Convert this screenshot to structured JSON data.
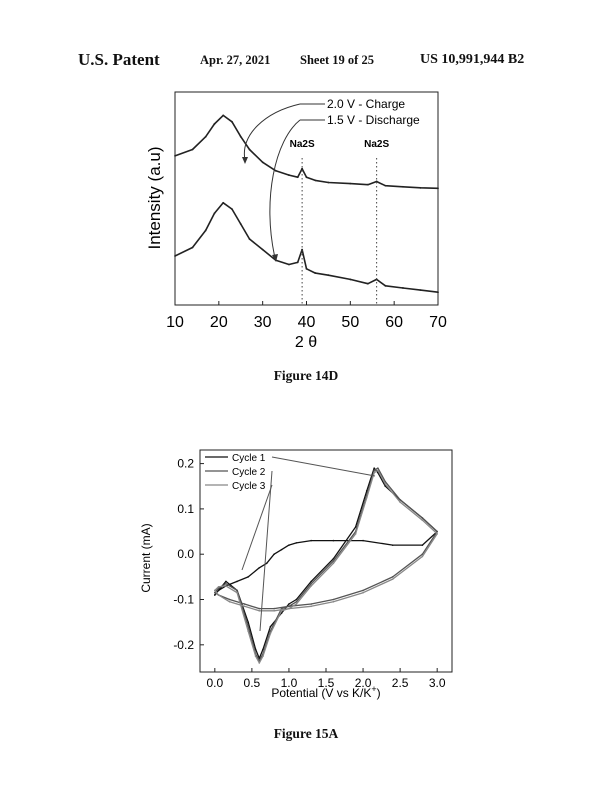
{
  "header": {
    "left": "U.S. Patent",
    "date": "Apr. 27, 2021",
    "sheet": "Sheet 19 of 25",
    "number": "US 10,991,944 B2"
  },
  "figures": {
    "fig14d_caption": "Figure 14D",
    "fig15a_caption": "Figure 15A"
  },
  "chart_data": [
    {
      "type": "line",
      "title": "",
      "xlabel": "2 θ",
      "ylabel": "Intensity (a.u)",
      "xlim": [
        10,
        70
      ],
      "xticks": [
        "10",
        "20",
        "30",
        "40",
        "50",
        "60",
        "70"
      ],
      "legend_labels": [
        "2.0 V - Charge",
        "1.5 V - Discharge"
      ],
      "annotations": [
        "Na2S",
        "Na2S"
      ],
      "annotation_x": [
        39,
        56
      ],
      "series": [
        {
          "name": "2.0 V - Charge",
          "x": [
            10,
            14,
            17,
            19,
            21,
            23,
            25,
            27,
            30,
            33,
            36,
            38,
            39,
            40,
            42,
            45,
            50,
            54,
            56,
            58,
            62,
            66,
            70
          ],
          "y": [
            0.7,
            0.73,
            0.79,
            0.85,
            0.89,
            0.86,
            0.79,
            0.73,
            0.67,
            0.63,
            0.61,
            0.6,
            0.64,
            0.6,
            0.585,
            0.575,
            0.57,
            0.565,
            0.58,
            0.56,
            0.555,
            0.55,
            0.548
          ]
        },
        {
          "name": "1.5 V - Discharge",
          "x": [
            10,
            14,
            17,
            19,
            21,
            23,
            25,
            27,
            30,
            33,
            36,
            38,
            39,
            40,
            42,
            45,
            50,
            54,
            56,
            58,
            62,
            66,
            70
          ],
          "y": [
            0.23,
            0.27,
            0.35,
            0.43,
            0.48,
            0.45,
            0.38,
            0.31,
            0.26,
            0.21,
            0.19,
            0.2,
            0.26,
            0.17,
            0.15,
            0.14,
            0.12,
            0.1,
            0.12,
            0.09,
            0.08,
            0.07,
            0.06
          ]
        }
      ]
    },
    {
      "type": "line",
      "title": "",
      "xlabel": "Potential (V vs K/K+)",
      "ylabel": "Current (mA)",
      "xlim": [
        -0.2,
        3.2
      ],
      "ylim": [
        -0.26,
        0.23
      ],
      "xticks": [
        "0.0",
        "0.5",
        "1.0",
        "1.5",
        "2.0",
        "2.5",
        "3.0"
      ],
      "yticks": [
        "-0.2",
        "-0.1",
        "0.0",
        "0.1",
        "0.2"
      ],
      "series": [
        {
          "name": "Cycle 1",
          "x": [
            0.0,
            0.05,
            0.15,
            0.3,
            0.45,
            0.55,
            0.6,
            0.65,
            0.75,
            0.9,
            1.0,
            1.1,
            1.3,
            1.6,
            1.9,
            2.05,
            2.15,
            2.2,
            2.3,
            2.5,
            2.8,
            3.0,
            2.8,
            2.4,
            2.0,
            1.6,
            1.3,
            1.1,
            1.0,
            0.9,
            0.8,
            0.7,
            0.6,
            0.45,
            0.3,
            0.15,
            0.05,
            0.0
          ],
          "y": [
            -0.09,
            -0.08,
            -0.06,
            -0.08,
            -0.15,
            -0.21,
            -0.23,
            -0.21,
            -0.16,
            -0.13,
            -0.11,
            -0.1,
            -0.06,
            -0.01,
            0.06,
            0.14,
            0.19,
            0.18,
            0.15,
            0.12,
            0.08,
            0.05,
            0.02,
            0.02,
            0.03,
            0.03,
            0.03,
            0.025,
            0.02,
            0.01,
            0.0,
            -0.02,
            -0.03,
            -0.05,
            -0.06,
            -0.07,
            -0.08,
            -0.09
          ]
        },
        {
          "name": "Cycle 2",
          "x": [
            0.0,
            0.05,
            0.15,
            0.3,
            0.45,
            0.55,
            0.6,
            0.65,
            0.75,
            0.9,
            1.0,
            1.1,
            1.3,
            1.6,
            1.9,
            2.05,
            2.15,
            2.2,
            2.3,
            2.5,
            2.8,
            3.0,
            2.8,
            2.4,
            2.0,
            1.6,
            1.3,
            1.0,
            0.8,
            0.6,
            0.4,
            0.2,
            0.05,
            0.0
          ],
          "y": [
            -0.085,
            -0.075,
            -0.065,
            -0.08,
            -0.16,
            -0.22,
            -0.235,
            -0.22,
            -0.17,
            -0.12,
            -0.115,
            -0.105,
            -0.065,
            -0.015,
            0.05,
            0.13,
            0.185,
            0.19,
            0.16,
            0.12,
            0.08,
            0.05,
            0.0,
            -0.05,
            -0.08,
            -0.1,
            -0.11,
            -0.115,
            -0.12,
            -0.12,
            -0.11,
            -0.1,
            -0.09,
            -0.085
          ]
        },
        {
          "name": "Cycle 3",
          "x": [
            0.0,
            0.05,
            0.15,
            0.3,
            0.45,
            0.55,
            0.6,
            0.65,
            0.75,
            0.9,
            1.0,
            1.1,
            1.3,
            1.6,
            1.9,
            2.05,
            2.15,
            2.2,
            2.3,
            2.5,
            2.8,
            3.0,
            2.8,
            2.4,
            2.0,
            1.6,
            1.3,
            1.0,
            0.8,
            0.6,
            0.4,
            0.2,
            0.05,
            0.0
          ],
          "y": [
            -0.08,
            -0.072,
            -0.07,
            -0.085,
            -0.17,
            -0.225,
            -0.24,
            -0.225,
            -0.175,
            -0.125,
            -0.12,
            -0.11,
            -0.07,
            -0.02,
            0.045,
            0.125,
            0.18,
            0.185,
            0.155,
            0.115,
            0.075,
            0.045,
            -0.005,
            -0.055,
            -0.085,
            -0.105,
            -0.115,
            -0.12,
            -0.125,
            -0.125,
            -0.115,
            -0.105,
            -0.09,
            -0.08
          ]
        }
      ]
    }
  ]
}
